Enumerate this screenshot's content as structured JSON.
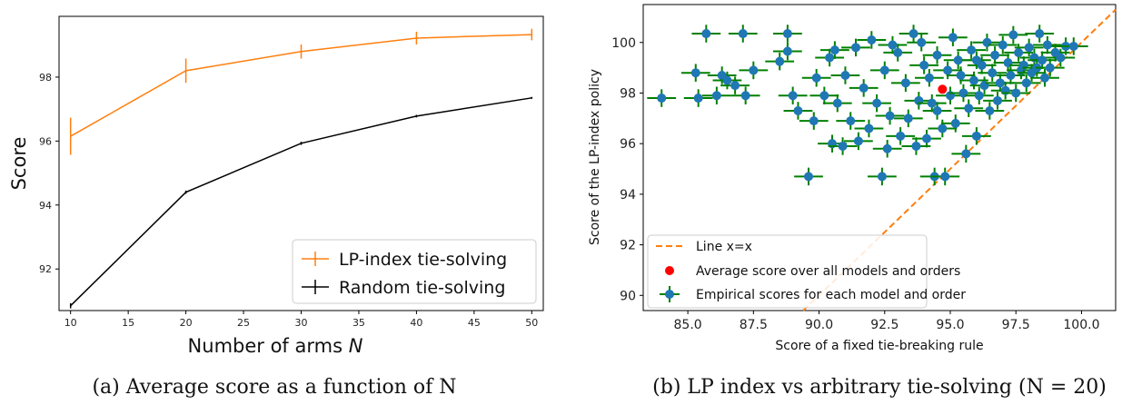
{
  "chart_data": [
    {
      "type": "line",
      "caption": "(a) Average score as a function of N",
      "xlabel": "Number of arms N",
      "ylabel": "Score",
      "xlim": [
        9,
        51
      ],
      "ylim": [
        90.7,
        99.9
      ],
      "xticks": [
        10,
        15,
        20,
        25,
        30,
        35,
        40,
        45,
        50
      ],
      "yticks": [
        92,
        94,
        96,
        98
      ],
      "x": [
        10,
        20,
        30,
        40,
        50
      ],
      "series": [
        {
          "name": "LP-index tie-solving",
          "color": "#ff7f0e",
          "values": [
            96.15,
            98.2,
            98.8,
            99.22,
            99.33
          ],
          "errors": [
            0.58,
            0.38,
            0.22,
            0.2,
            0.18
          ]
        },
        {
          "name": "Random tie-solving",
          "color": "#000000",
          "values": [
            90.85,
            94.4,
            95.93,
            96.78,
            97.35
          ],
          "errors": [
            0.08,
            0.05,
            0.05,
            0.04,
            0.03
          ]
        }
      ],
      "legend_position": "lower-right",
      "grid": false
    },
    {
      "type": "scatter",
      "caption": "(b) LP index vs arbitrary tie-solving (N = 20)",
      "xlabel": "Score of a fixed tie-breaking rule",
      "ylabel": "Score of the LP-index policy",
      "xlim": [
        83.3,
        101.3
      ],
      "ylim": [
        89.4,
        101.5
      ],
      "xticks": [
        85.0,
        87.5,
        90.0,
        92.5,
        95.0,
        97.5,
        100.0
      ],
      "xtick_labels": [
        "85.0",
        "87.5",
        "90.0",
        "92.5",
        "95.0",
        "97.5",
        "100.0"
      ],
      "yticks": [
        90,
        92,
        94,
        96,
        98,
        100
      ],
      "legend_position": "lower-left",
      "grid": false,
      "line_x_eq_x": {
        "name": "Line x=x",
        "color": "#ff7f0e"
      },
      "average": {
        "name": "Average score over all models and orders",
        "x": 94.7,
        "y": 98.15,
        "color": "#ff0000"
      },
      "empirical": {
        "name": "Empirical scores for each model and order",
        "color": "#1f77b4",
        "error_color": "#008000",
        "points": [
          [
            84.0,
            97.8
          ],
          [
            85.3,
            98.8
          ],
          [
            85.4,
            97.8
          ],
          [
            85.7,
            100.35
          ],
          [
            86.1,
            97.9
          ],
          [
            86.3,
            98.7
          ],
          [
            86.5,
            98.5
          ],
          [
            86.8,
            98.3
          ],
          [
            87.1,
            100.35
          ],
          [
            87.2,
            97.9
          ],
          [
            87.5,
            98.9
          ],
          [
            88.5,
            99.25
          ],
          [
            88.8,
            99.65
          ],
          [
            88.8,
            100.35
          ],
          [
            89.0,
            97.9
          ],
          [
            89.2,
            97.3
          ],
          [
            89.6,
            94.7
          ],
          [
            89.9,
            98.6
          ],
          [
            90.2,
            97.9
          ],
          [
            90.4,
            99.4
          ],
          [
            90.5,
            96.0
          ],
          [
            90.7,
            97.6
          ],
          [
            90.9,
            95.9
          ],
          [
            91.0,
            98.7
          ],
          [
            91.2,
            96.9
          ],
          [
            91.4,
            99.8
          ],
          [
            91.5,
            96.1
          ],
          [
            91.7,
            98.2
          ],
          [
            92.0,
            100.1
          ],
          [
            92.2,
            97.6
          ],
          [
            92.4,
            94.7
          ],
          [
            92.5,
            98.9
          ],
          [
            92.6,
            95.8
          ],
          [
            92.7,
            97.1
          ],
          [
            93.0,
            99.6
          ],
          [
            93.1,
            96.3
          ],
          [
            93.3,
            98.4
          ],
          [
            93.6,
            100.35
          ],
          [
            93.7,
            95.9
          ],
          [
            93.8,
            97.7
          ],
          [
            94.0,
            99.1
          ],
          [
            94.1,
            96.2
          ],
          [
            94.2,
            98.6
          ],
          [
            94.4,
            94.7
          ],
          [
            94.5,
            97.3
          ],
          [
            94.5,
            99.5
          ],
          [
            94.7,
            96.6
          ],
          [
            94.8,
            94.7
          ],
          [
            94.9,
            98.9
          ],
          [
            95.0,
            97.9
          ],
          [
            95.1,
            100.2
          ],
          [
            95.2,
            96.8
          ],
          [
            95.3,
            99.3
          ],
          [
            95.5,
            98.0
          ],
          [
            95.6,
            95.6
          ],
          [
            95.7,
            97.4
          ],
          [
            95.8,
            99.7
          ],
          [
            95.9,
            98.5
          ],
          [
            96.0,
            96.3
          ],
          [
            96.1,
            97.9
          ],
          [
            96.2,
            99.1
          ],
          [
            96.3,
            98.3
          ],
          [
            96.4,
            100.0
          ],
          [
            96.5,
            97.3
          ],
          [
            96.6,
            98.8
          ],
          [
            96.7,
            99.5
          ],
          [
            96.8,
            97.7
          ],
          [
            96.9,
            98.4
          ],
          [
            97.0,
            99.9
          ],
          [
            97.1,
            98.1
          ],
          [
            97.2,
            99.2
          ],
          [
            97.3,
            98.7
          ],
          [
            97.4,
            100.3
          ],
          [
            97.5,
            98.0
          ],
          [
            97.6,
            99.6
          ],
          [
            97.7,
            98.9
          ],
          [
            97.8,
            99.1
          ],
          [
            97.9,
            98.4
          ],
          [
            98.0,
            99.8
          ],
          [
            98.1,
            98.8
          ],
          [
            98.2,
            99.4
          ],
          [
            98.3,
            99.0
          ],
          [
            98.4,
            100.35
          ],
          [
            98.5,
            99.3
          ],
          [
            98.6,
            98.6
          ],
          [
            98.7,
            99.9
          ],
          [
            98.8,
            99.0
          ],
          [
            99.0,
            99.6
          ],
          [
            99.2,
            99.4
          ],
          [
            99.4,
            99.85
          ],
          [
            99.7,
            99.85
          ],
          [
            92.8,
            99.9
          ],
          [
            93.4,
            97.0
          ],
          [
            91.9,
            96.6
          ],
          [
            90.6,
            99.7
          ],
          [
            89.8,
            96.9
          ],
          [
            93.9,
            100.0
          ],
          [
            95.4,
            98.7
          ],
          [
            96.0,
            99.3
          ],
          [
            94.3,
            97.6
          ]
        ]
      }
    }
  ]
}
